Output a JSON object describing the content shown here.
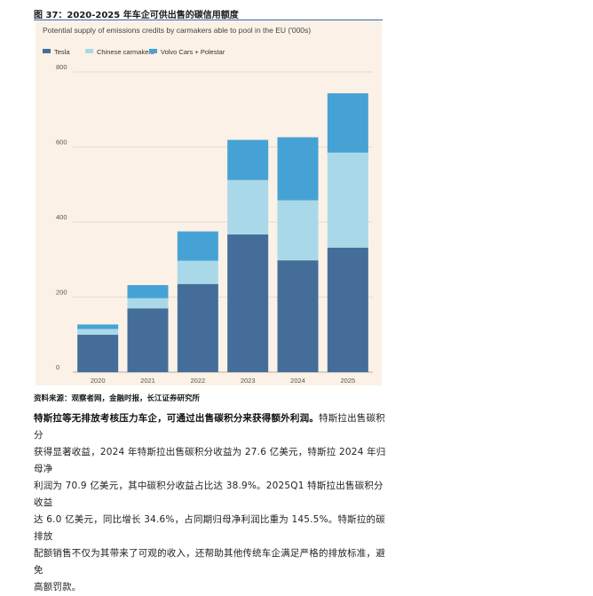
{
  "figure": {
    "caption": "图 37：2020-2025 年车企可供出售的碳信用额度",
    "source": "资料来源：观察者网，金融时报，长江证券研究所"
  },
  "chart_data": {
    "type": "bar",
    "stacked": true,
    "title": "Potential supply of emissions credits by carmakers able to pool in the EU ('000s)",
    "categories": [
      "2020",
      "2021",
      "2022",
      "2023",
      "2024",
      "2025"
    ],
    "series": [
      {
        "name": "Tesla",
        "color": "#456d99",
        "values": [
          100,
          170,
          235,
          367,
          298,
          332
        ]
      },
      {
        "name": "Chinese carmakers",
        "color": "#a9d9e8",
        "values": [
          15,
          27,
          62,
          145,
          160,
          253
        ]
      },
      {
        "name": "Volvo Cars + Polestar",
        "color": "#46a2d4",
        "values": [
          12,
          35,
          78,
          107,
          168,
          158
        ]
      }
    ],
    "ylim": [
      0,
      800
    ],
    "yticks": [
      0,
      200,
      400,
      600,
      800
    ],
    "grid": true,
    "legend_position": "top-left"
  },
  "text": {
    "lead": "特斯拉等无排放考核压力车企，可通过出售碳积分来获得额外利润。",
    "lines": [
      "特斯拉出售碳积分",
      "获得显著收益，2024 年特斯拉出售碳积分收益为 27.6 亿美元，特斯拉 2024 年归母净",
      "利润为 70.9 亿美元，其中碳积分收益占比达 38.9%。2025Q1 特斯拉出售碳积分收益",
      "达 6.0 亿美元，同比增长 34.6%，占同期归母净利润比重为 145.5%。特斯拉的碳排放",
      "配额销售不仅为其带来了可观的收入，还帮助其他传统车企满足严格的排放标准，避免",
      "高额罚款。"
    ]
  }
}
